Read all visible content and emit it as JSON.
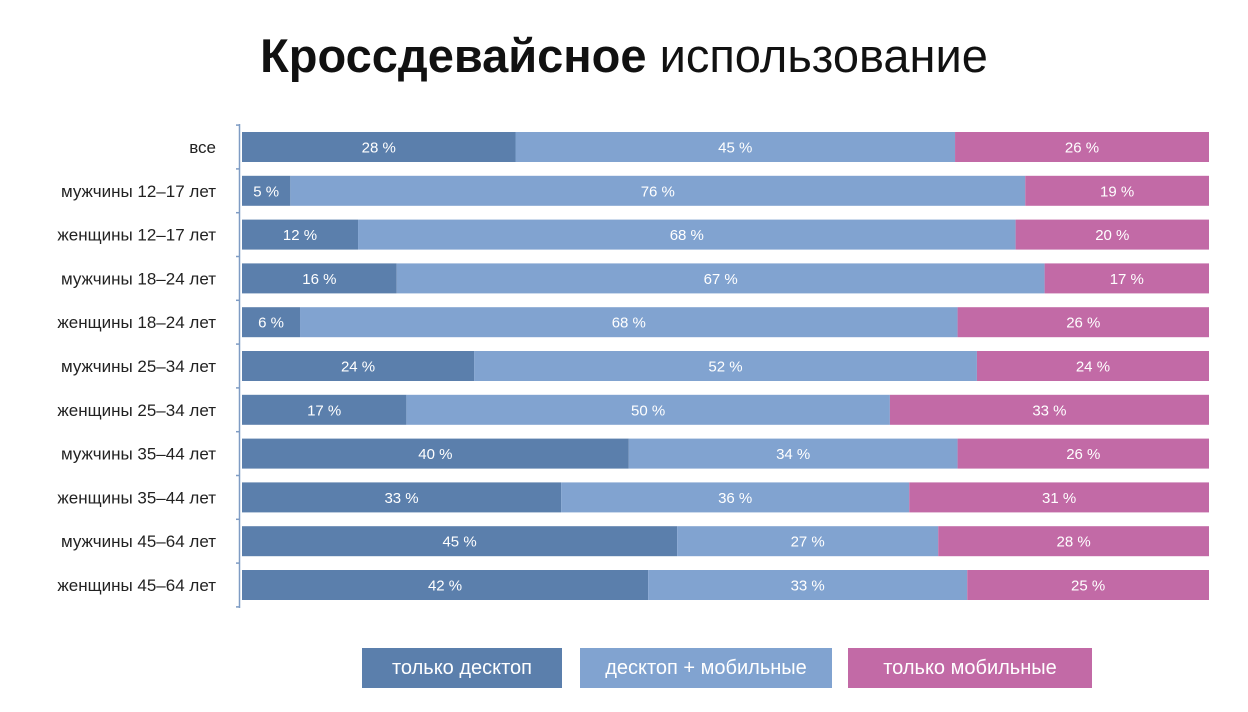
{
  "title": {
    "bold": "Кроссдевайсное",
    "light": "использование"
  },
  "colors": {
    "desktop_only": "#5b7fac",
    "desktop_mobile": "#81a3d0",
    "mobile_only": "#c26aa6"
  },
  "chart_data": {
    "type": "bar",
    "orientation": "horizontal",
    "stacked": true,
    "categories": [
      "все",
      "мужчины 12–17 лет",
      "женщины 12–17 лет",
      "мужчины 18–24 лет",
      "женщины 18–24 лет",
      "мужчины 25–34 лет",
      "женщины 25–34 лет",
      "мужчины 35–44 лет",
      "женщины 35–44 лет",
      "мужчины 45–64 лет",
      "женщины 45–64 лет"
    ],
    "series": [
      {
        "name": "только десктоп",
        "color": "#5b7fac",
        "values": [
          28,
          5,
          12,
          16,
          6,
          24,
          17,
          40,
          33,
          45,
          42
        ]
      },
      {
        "name": "десктоп + мобильные",
        "color": "#81a3d0",
        "values": [
          45,
          76,
          68,
          67,
          68,
          52,
          50,
          34,
          36,
          27,
          33
        ]
      },
      {
        "name": "только мобильные",
        "color": "#c26aa6",
        "values": [
          26,
          19,
          20,
          17,
          26,
          24,
          33,
          26,
          31,
          28,
          25
        ]
      }
    ],
    "value_suffix": " %",
    "legend_position": "bottom",
    "grid": false
  }
}
